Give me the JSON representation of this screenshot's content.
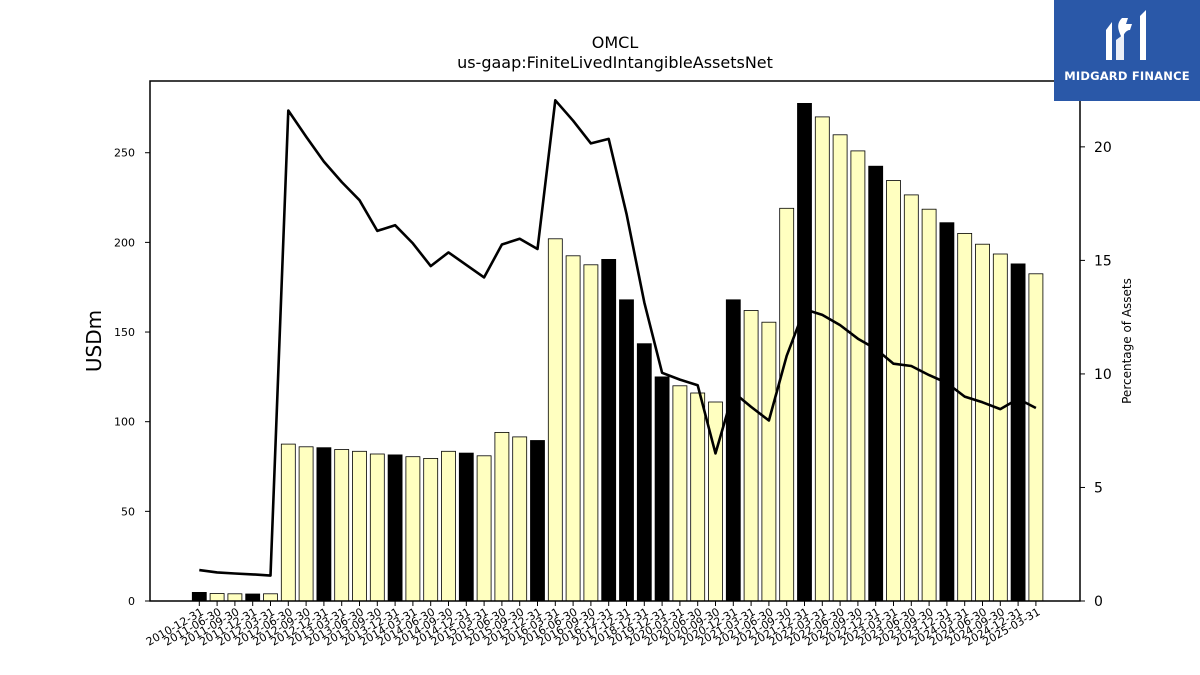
{
  "brand": {
    "name": "MIDGARD FINANCE",
    "logo_icon": "midgard-logo-icon",
    "bg_color": "#2a58a8"
  },
  "chart_data": {
    "type": "bar",
    "title": "OMCL",
    "subtitle": "us-gaap:FiniteLivedIntangibleAssetsNet",
    "ylabel": "USDm",
    "y2label": "Percentage of Assets",
    "ylim": [
      0,
      290
    ],
    "y2lim": [
      0,
      22.9
    ],
    "yticks": [
      0,
      50,
      100,
      150,
      200,
      250
    ],
    "y2ticks": [
      0,
      5,
      10,
      15,
      20
    ],
    "categories": [
      "2010-12-31",
      "2011-06-30",
      "2011-09-30",
      "2011-12-31",
      "2012-03-31",
      "2012-06-30",
      "2012-09-30",
      "2012-12-31",
      "2013-03-31",
      "2013-06-30",
      "2013-09-30",
      "2013-12-31",
      "2014-03-31",
      "2014-06-30",
      "2014-09-30",
      "2014-12-31",
      "2015-03-31",
      "2015-06-30",
      "2015-09-30",
      "2015-12-31",
      "2016-03-31",
      "2016-06-30",
      "2016-09-30",
      "2016-12-31",
      "2017-12-31",
      "2018-12-31",
      "2019-12-31",
      "2020-03-31",
      "2020-06-30",
      "2020-09-30",
      "2020-12-31",
      "2021-03-31",
      "2021-06-30",
      "2021-09-30",
      "2021-12-31",
      "2022-03-31",
      "2022-06-30",
      "2022-09-30",
      "2022-12-31",
      "2023-03-31",
      "2023-06-30",
      "2023-09-30",
      "2023-12-31",
      "2024-03-31",
      "2024-06-30",
      "2024-09-30",
      "2024-12-31",
      "2025-03-31"
    ],
    "series": [
      {
        "axis": "left",
        "type": "bar",
        "values": [
          4.8,
          4.2,
          4.0,
          3.9,
          4.0,
          87.5,
          86.0,
          85.5,
          84.5,
          83.5,
          82,
          81.5,
          80.5,
          79.5,
          83.5,
          82.5,
          81,
          94,
          91.5,
          89.5,
          202,
          192.5,
          187.5,
          190.5,
          168,
          143.5,
          125,
          120,
          116,
          111,
          168,
          162,
          155.5,
          219,
          277.5,
          270,
          260,
          251,
          242.5,
          234.5,
          226.5,
          218.5,
          211,
          205,
          199,
          193.5,
          188,
          182.5
        ],
        "highlight": [
          true,
          false,
          false,
          true,
          false,
          false,
          false,
          true,
          false,
          false,
          false,
          true,
          false,
          false,
          false,
          true,
          false,
          false,
          false,
          true,
          false,
          false,
          false,
          true,
          true,
          true,
          true,
          false,
          false,
          false,
          true,
          false,
          false,
          false,
          true,
          false,
          false,
          false,
          true,
          false,
          false,
          false,
          true,
          false,
          false,
          false,
          true,
          false
        ]
      },
      {
        "axis": "right",
        "type": "line",
        "values": [
          1.36,
          1.26,
          1.21,
          1.17,
          1.12,
          21.6,
          20.45,
          19.35,
          18.45,
          17.65,
          16.3,
          16.55,
          15.75,
          14.75,
          15.35,
          14.8,
          14.25,
          15.7,
          15.95,
          15.5,
          22.05,
          21.15,
          20.15,
          20.35,
          17.05,
          13.15,
          10.05,
          9.75,
          9.5,
          6.5,
          9.2,
          8.55,
          7.95,
          10.8,
          12.85,
          12.6,
          12.15,
          11.55,
          11.1,
          10.45,
          10.35,
          9.95,
          9.6,
          9.0,
          8.75,
          8.45,
          8.9,
          8.5
        ]
      }
    ],
    "colors": {
      "bar_fill": "#ffffc0",
      "bar_highlight": "#000000",
      "line": "#000000"
    },
    "grid": false,
    "legend": "none"
  }
}
